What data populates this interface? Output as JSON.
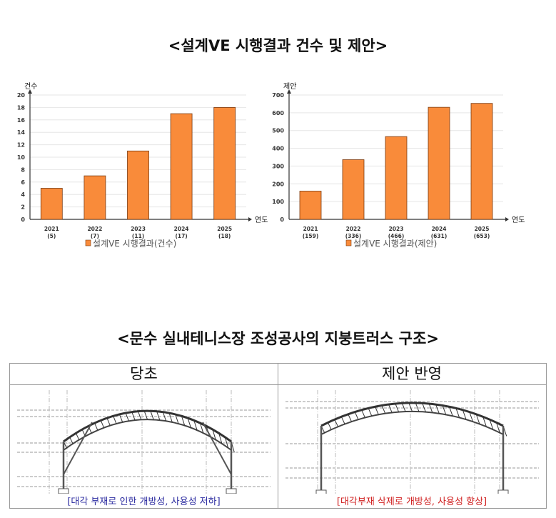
{
  "title1": "<설계VE 시행결과 건수 및 제안>",
  "title2": "<문수 실내테니스장 조성공사의 지붕트러스 구조>",
  "chart_data": [
    {
      "type": "bar",
      "ylabel": "건수",
      "xlabel": "연도",
      "ylim": [
        0,
        20
      ],
      "yticks": [
        0,
        2,
        4,
        6,
        8,
        10,
        12,
        14,
        16,
        18,
        20
      ],
      "grid": true,
      "categories": [
        "2021",
        "2022",
        "2023",
        "2024",
        "2025"
      ],
      "category_sublabels": [
        "(5)",
        "(7)",
        "(11)",
        "(17)",
        "(18)"
      ],
      "values": [
        5,
        7,
        11,
        17,
        18
      ],
      "legend": "설계VE 시행결과(건수)",
      "legend_position": "bottom",
      "color": "#F98B3A"
    },
    {
      "type": "bar",
      "ylabel": "제안",
      "xlabel": "연도",
      "ylim": [
        0,
        700
      ],
      "yticks": [
        0,
        100,
        200,
        300,
        400,
        500,
        600,
        700
      ],
      "grid": true,
      "categories": [
        "2021",
        "2022",
        "2023",
        "2024",
        "2025"
      ],
      "category_sublabels": [
        "(159)",
        "(336)",
        "(466)",
        "(631)",
        "(653)"
      ],
      "values": [
        159,
        336,
        466,
        631,
        653
      ],
      "legend": "설계VE 시행결과(제안)",
      "legend_position": "bottom",
      "color": "#F98B3A"
    }
  ],
  "table": {
    "left": {
      "header": "당초",
      "caption": "[대각 부재로 인한 개방성, 사용성 저하]",
      "caption_color": "#2B2BA0",
      "diagonal_braces": true
    },
    "right": {
      "header": "제안 반영",
      "caption": "[대각부재 삭제로 개방성, 사용성 향상]",
      "caption_color": "#D02020",
      "diagonal_braces": false
    }
  }
}
